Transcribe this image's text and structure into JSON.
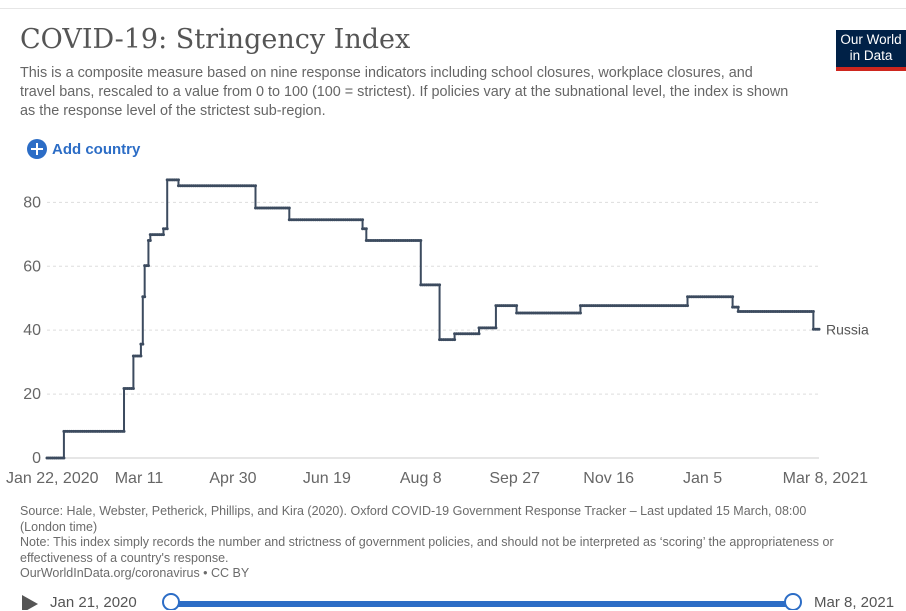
{
  "header": {
    "title": "COVID-19: Stringency Index",
    "subtitle": "This is a composite measure based on nine response indicators including school closures, workplace closures, and travel bans, rescaled to a value from 0 to 100 (100 = strictest). If policies vary at the subnational level, the index is shown as the response level of the strictest sub-region.",
    "logo_line1": "Our World",
    "logo_line2": "in Data",
    "logo_bg": "#002147",
    "logo_accent": "#ce261e"
  },
  "controls": {
    "add_country_label": "Add country",
    "add_icon": "plus-circle-icon",
    "accent": "#2c6dc6"
  },
  "chart_data": {
    "type": "line",
    "x_type": "date",
    "xlim": [
      "2020-01-22",
      "2021-03-08"
    ],
    "ylim": [
      0,
      87
    ],
    "y_ticks": [
      0,
      20,
      40,
      60,
      80
    ],
    "y_tick_labels": [
      "0",
      "20",
      "40",
      "60",
      "80"
    ],
    "x_ticks": [
      "2020-01-22",
      "2020-03-11",
      "2020-04-30",
      "2020-06-19",
      "2020-08-08",
      "2020-09-27",
      "2020-11-16",
      "2021-01-05",
      "2021-03-08"
    ],
    "x_tick_labels": [
      "Jan 22, 2020",
      "Mar 11",
      "Apr 30",
      "Jun 19",
      "Aug 8",
      "Sep 27",
      "Nov 16",
      "Jan 5",
      "Mar 8, 2021"
    ],
    "grid": true,
    "legend": "end-of-line label",
    "series": [
      {
        "name": "Russia",
        "color": "#3c4b5f",
        "points": [
          [
            "2020-01-22",
            0
          ],
          [
            "2020-01-31",
            0
          ],
          [
            "2020-01-31",
            8.33
          ],
          [
            "2020-03-03",
            8.33
          ],
          [
            "2020-03-03",
            21.76
          ],
          [
            "2020-03-08",
            21.76
          ],
          [
            "2020-03-08",
            31.94
          ],
          [
            "2020-03-12",
            31.94
          ],
          [
            "2020-03-12",
            35.65
          ],
          [
            "2020-03-13",
            35.65
          ],
          [
            "2020-03-13",
            50.46
          ],
          [
            "2020-03-14",
            50.46
          ],
          [
            "2020-03-14",
            60.19
          ],
          [
            "2020-03-16",
            60.19
          ],
          [
            "2020-03-16",
            68.06
          ],
          [
            "2020-03-17",
            68.06
          ],
          [
            "2020-03-17",
            69.91
          ],
          [
            "2020-03-24",
            69.91
          ],
          [
            "2020-03-24",
            71.76
          ],
          [
            "2020-03-26",
            71.76
          ],
          [
            "2020-03-26",
            87.04
          ],
          [
            "2020-04-01",
            87.04
          ],
          [
            "2020-04-01",
            85.19
          ],
          [
            "2020-05-12",
            85.19
          ],
          [
            "2020-05-12",
            78.24
          ],
          [
            "2020-05-30",
            78.24
          ],
          [
            "2020-05-30",
            74.54
          ],
          [
            "2020-07-08",
            74.54
          ],
          [
            "2020-07-08",
            71.76
          ],
          [
            "2020-07-10",
            71.76
          ],
          [
            "2020-07-10",
            68.06
          ],
          [
            "2020-08-08",
            68.06
          ],
          [
            "2020-08-08",
            54.17
          ],
          [
            "2020-08-18",
            54.17
          ],
          [
            "2020-08-18",
            37.04
          ],
          [
            "2020-08-26",
            37.04
          ],
          [
            "2020-08-26",
            38.89
          ],
          [
            "2020-09-08",
            38.89
          ],
          [
            "2020-09-08",
            40.74
          ],
          [
            "2020-09-17",
            40.74
          ],
          [
            "2020-09-17",
            47.69
          ],
          [
            "2020-09-28",
            47.69
          ],
          [
            "2020-09-28",
            45.37
          ],
          [
            "2020-11-01",
            45.37
          ],
          [
            "2020-11-01",
            47.69
          ],
          [
            "2020-12-28",
            47.69
          ],
          [
            "2020-12-28",
            50.46
          ],
          [
            "2021-01-21",
            50.46
          ],
          [
            "2021-01-21",
            47.22
          ],
          [
            "2021-01-24",
            47.22
          ],
          [
            "2021-01-24",
            45.83
          ],
          [
            "2021-03-05",
            45.83
          ],
          [
            "2021-03-05",
            40.28
          ],
          [
            "2021-03-08",
            40.28
          ]
        ]
      }
    ]
  },
  "footer": {
    "source": "Source: Hale, Webster, Petherick, Phillips, and Kira (2020). Oxford COVID-19 Government Response Tracker – Last updated 15 March, 08:00 (London time)",
    "note": "Note: This index simply records the number and strictness of government policies, and should not be interpreted as ‘scoring’ the appropriateness or effectiveness of a country's response.",
    "attribution": "OurWorldInData.org/coronavirus • CC BY"
  },
  "timeline": {
    "start_label": "Jan 21, 2020",
    "end_label": "Mar 8, 2021",
    "play_icon": "play-icon"
  }
}
